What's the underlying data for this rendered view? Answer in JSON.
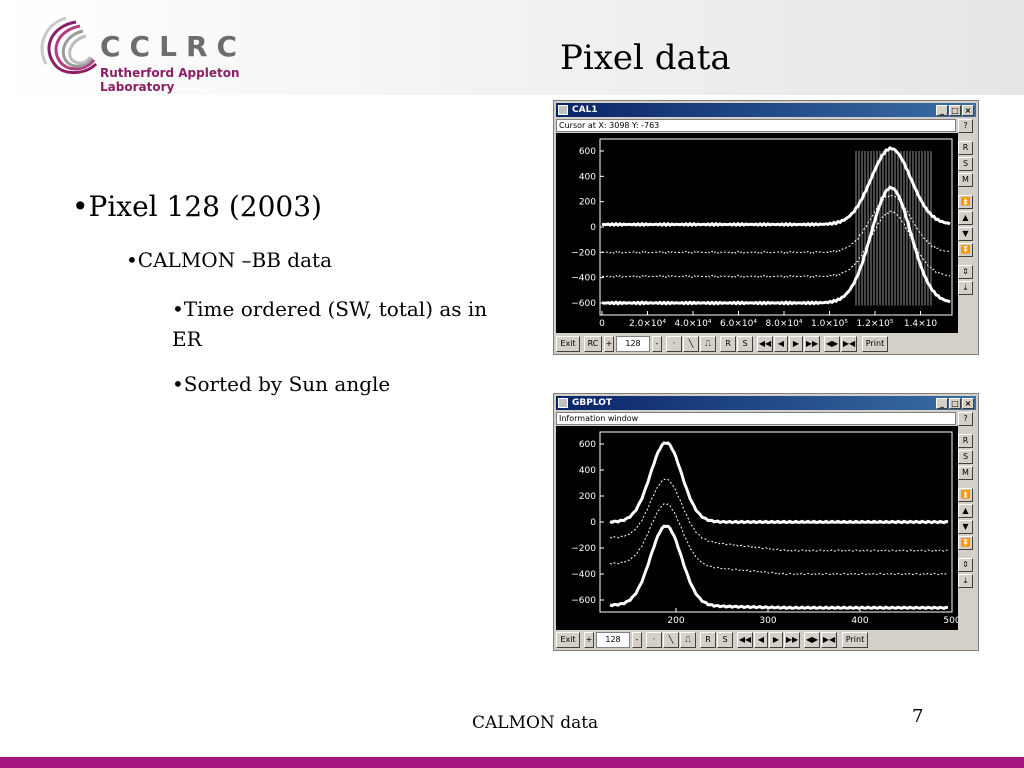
{
  "header": {
    "logo_text": "CCLRC",
    "logo_sub": "Rutherford Appleton Laboratory",
    "title": "Pixel data"
  },
  "bullets": {
    "b1": "•Pixel 128 (2003)",
    "b2": "•CALMON –BB data",
    "b3": "•Time ordered (SW, total) as in ER",
    "b4": "•Sorted by Sun angle"
  },
  "footer": {
    "text": "CALMON data",
    "page": "7"
  },
  "colors": {
    "accent": "#a4157f",
    "titlebar": "#0a246a"
  },
  "win1": {
    "title": "CAL1",
    "info": "Cursor at  X:  3098   Y: -763",
    "side_buttons": [
      "R",
      "S",
      "M"
    ],
    "field_value": "128",
    "bottom_buttons": [
      "Exit",
      "RC",
      "R",
      "S",
      "Print"
    ],
    "yticks": [
      "600",
      "400",
      "200",
      "0",
      "−200",
      "−400",
      "−600"
    ],
    "xticks": [
      "0",
      "2.0×10⁴",
      "4.0×10⁴",
      "6.0×10⁴",
      "8.0×10⁴",
      "1.0×10⁵",
      "1.2×10⁵",
      "1.4×10"
    ]
  },
  "win2": {
    "title": "GBPLOT",
    "info": "Information window",
    "side_buttons": [
      "R",
      "S",
      "M"
    ],
    "field_value": "128",
    "bottom_buttons": [
      "Exit",
      "R",
      "S",
      "Print"
    ],
    "yticks": [
      "600",
      "400",
      "200",
      "0",
      "−200",
      "−400",
      "−600"
    ],
    "xticks": [
      "200",
      "300",
      "400",
      "500"
    ]
  },
  "window_controls": [
    "_",
    "□",
    "×"
  ]
}
